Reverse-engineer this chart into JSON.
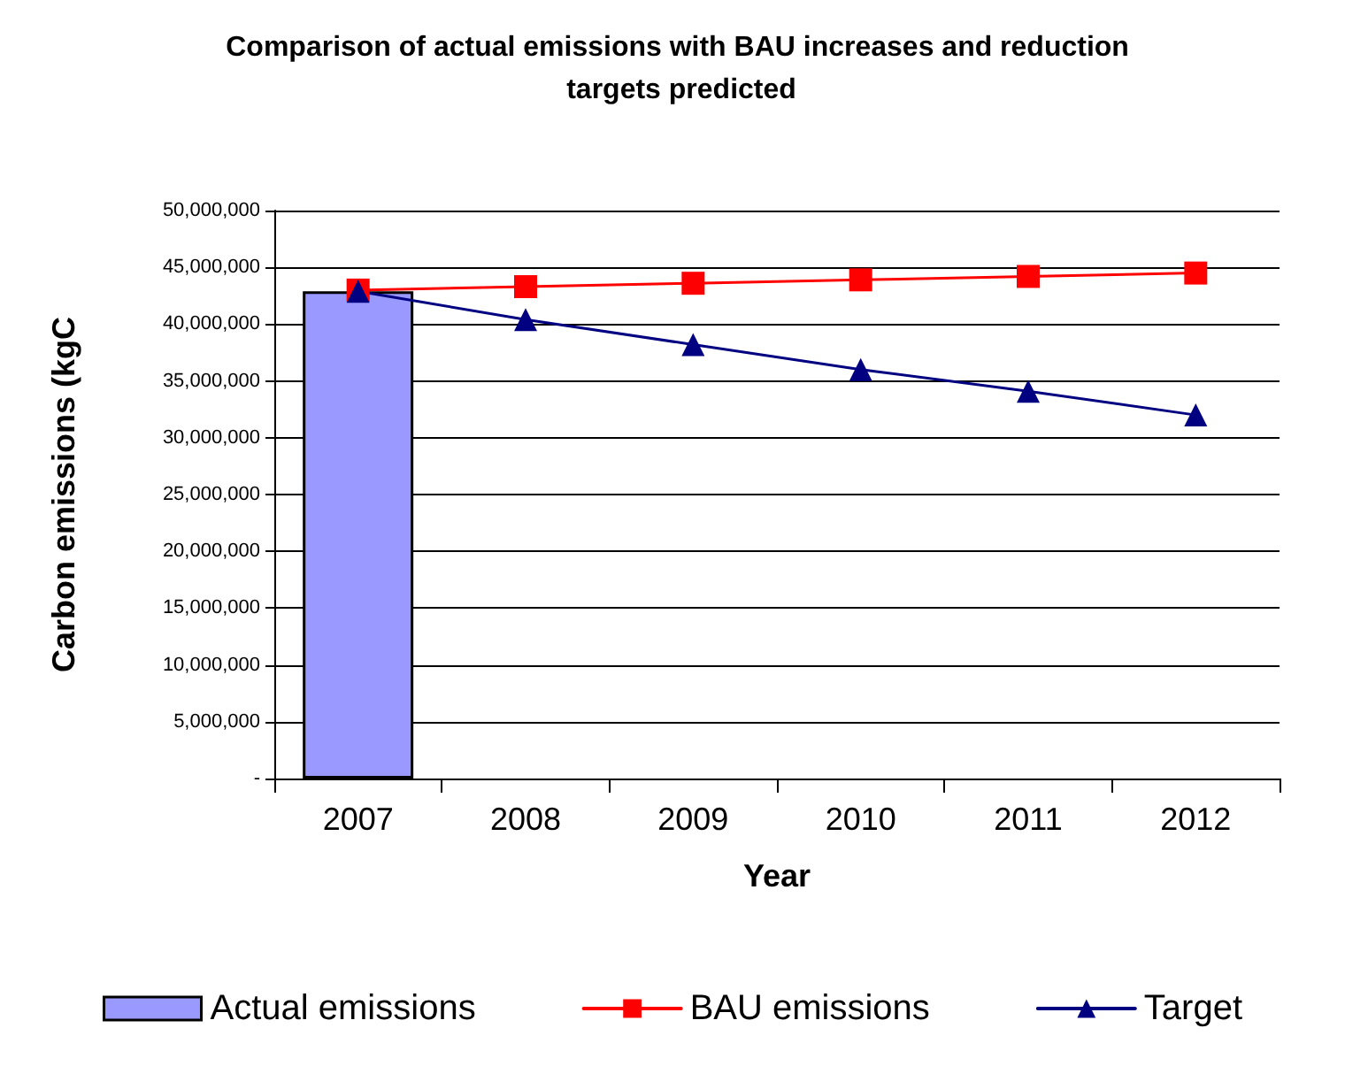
{
  "chart_data": {
    "type": "line",
    "title": "Comparison of actual emissions with BAU increases and reduction targets predicted",
    "xlabel": "Year",
    "ylabel": "Carbon emissions (kgC",
    "categories": [
      "2007",
      "2008",
      "2009",
      "2010",
      "2011",
      "2012"
    ],
    "series": [
      {
        "name": "Actual emissions",
        "type": "bar",
        "color": "#9999ff",
        "values": [
          42900000,
          null,
          null,
          null,
          null,
          null
        ]
      },
      {
        "name": "BAU emissions",
        "marker": "square",
        "color": "#ff0000",
        "values": [
          43000000,
          43300000,
          43600000,
          43900000,
          44200000,
          44500000
        ]
      },
      {
        "name": "Target",
        "marker": "triangle",
        "color": "#000080",
        "values": [
          42900000,
          40400000,
          38200000,
          36000000,
          34100000,
          32000000
        ]
      }
    ],
    "ylim": [
      0,
      50000000
    ],
    "yticks": [
      {
        "value": 0,
        "label": "-"
      },
      {
        "value": 5000000,
        "label": "5,000,000"
      },
      {
        "value": 10000000,
        "label": "10,000,000"
      },
      {
        "value": 15000000,
        "label": "15,000,000"
      },
      {
        "value": 20000000,
        "label": "20,000,000"
      },
      {
        "value": 25000000,
        "label": "25,000,000"
      },
      {
        "value": 30000000,
        "label": "30,000,000"
      },
      {
        "value": 35000000,
        "label": "35,000,000"
      },
      {
        "value": 40000000,
        "label": "40,000,000"
      },
      {
        "value": 45000000,
        "label": "45,000,000"
      },
      {
        "value": 50000000,
        "label": "50,000,000"
      }
    ],
    "grid": "y",
    "legend": "bottom"
  }
}
